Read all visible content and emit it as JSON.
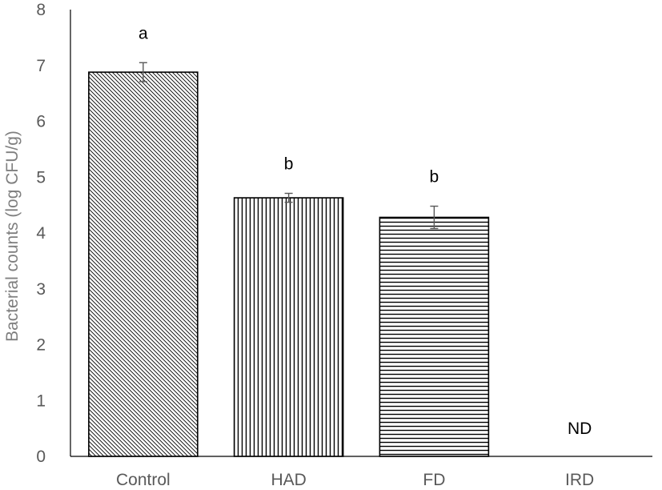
{
  "chart_data": {
    "type": "bar",
    "title": "",
    "xlabel": "",
    "ylabel": "Bacterial counts (log CFU/g)",
    "ylim": [
      0,
      8
    ],
    "yticks": [
      "0",
      "1",
      "2",
      "3",
      "4",
      "5",
      "6",
      "7",
      "8"
    ],
    "categories": [
      "Control",
      "HAD",
      "FD",
      "IRD"
    ],
    "values": [
      6.88,
      4.63,
      4.28,
      0
    ],
    "errors": [
      0.17,
      0.08,
      0.2,
      null
    ],
    "annotations": [
      "a",
      "b",
      "b",
      "ND"
    ],
    "patterns": [
      "diagonal",
      "vertical",
      "horizontal",
      "none"
    ],
    "grid": false,
    "legend": "none"
  }
}
